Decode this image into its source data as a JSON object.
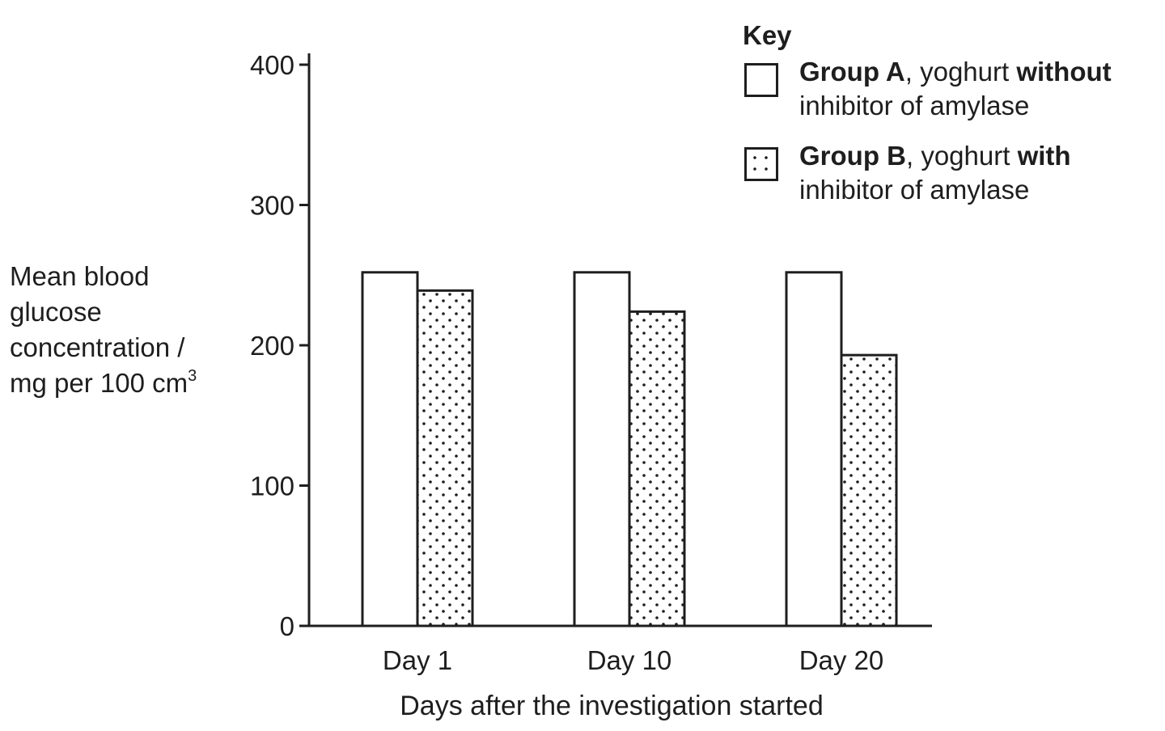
{
  "chart_data": {
    "type": "bar",
    "categories": [
      "Day 1",
      "Day 10",
      "Day 20"
    ],
    "series": [
      {
        "name": "Group A, yoghurt without inhibitor of amylase",
        "values": [
          252,
          252,
          252
        ],
        "pattern": "plain"
      },
      {
        "name": "Group B, yoghurt with inhibitor of amylase",
        "values": [
          239,
          224,
          193
        ],
        "pattern": "dotted"
      }
    ],
    "xlabel": "Days after the investigation started",
    "ylabel_lines": [
      "Mean blood",
      "glucose",
      "concentration /",
      "mg per 100 cm"
    ],
    "ylabel_superscript": "3",
    "ylim": [
      0,
      400
    ],
    "yticks": [
      "0",
      "100",
      "200",
      "300",
      "400"
    ],
    "grid": false,
    "legend": {
      "title": "Key",
      "position": "top-right",
      "items": [
        {
          "bold1": "Group A",
          "text1": ", yoghurt ",
          "bold2": "without",
          "line2": "inhibitor of amylase"
        },
        {
          "bold1": "Group B",
          "text1": ", yoghurt ",
          "bold2": "with",
          "line2": "inhibitor of amylase"
        }
      ]
    },
    "colors": {
      "ink": "#1e1e1e",
      "fill": "#ffffff"
    }
  }
}
